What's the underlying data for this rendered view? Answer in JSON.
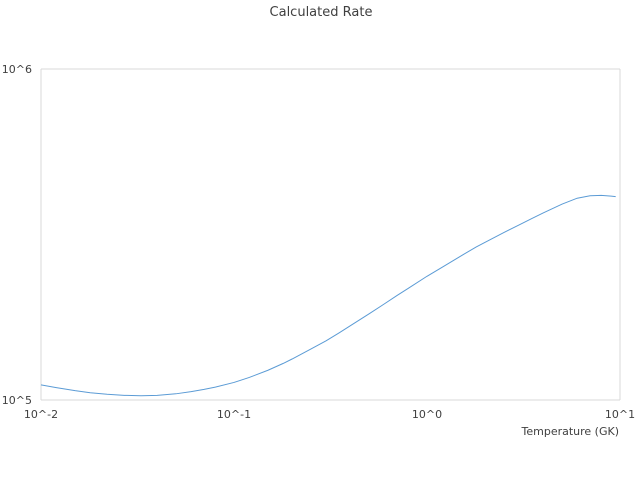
{
  "chart_data": {
    "type": "line",
    "title": "Calculated Rate",
    "xlabel": "Temperature (GK)",
    "ylabel": "",
    "xscale": "log",
    "yscale": "log",
    "xlim": [
      0.01,
      10
    ],
    "ylim": [
      100000,
      1000000
    ],
    "grid": true,
    "legend": "none",
    "colors": {
      "series": "#5b9bd5",
      "grid": "#d9d9d9",
      "text": "#404040"
    },
    "x_ticks": [
      "10^-2",
      "10^-1",
      "10^0",
      "10^1"
    ],
    "y_ticks": [
      "10^5",
      "10^6"
    ],
    "series": [
      {
        "x": [
          0.01,
          0.012,
          0.015,
          0.018,
          0.022,
          0.027,
          0.033,
          0.04,
          0.05,
          0.06,
          0.07,
          0.08,
          0.1,
          0.12,
          0.15,
          0.18,
          0.2,
          0.25,
          0.3,
          0.35,
          0.4,
          0.5,
          0.6,
          0.7,
          0.8,
          1.0,
          1.2,
          1.5,
          1.8,
          2.0,
          2.5,
          3.0,
          3.5,
          4.0,
          5.0,
          6.0,
          7.0,
          8.0,
          9.0,
          9.5
        ],
        "y": [
          111100,
          109000,
          106700,
          105200,
          104100,
          103300,
          103000,
          103300,
          104400,
          106000,
          107700,
          109400,
          113000,
          117000,
          123000,
          129000,
          133000,
          142500,
          151000,
          159500,
          167500,
          182000,
          195000,
          207000,
          217500,
          236500,
          252000,
          272500,
          290000,
          299500,
          320500,
          338000,
          353500,
          367500,
          390500,
          407000,
          414000,
          415000,
          413000,
          411500
        ]
      }
    ]
  }
}
